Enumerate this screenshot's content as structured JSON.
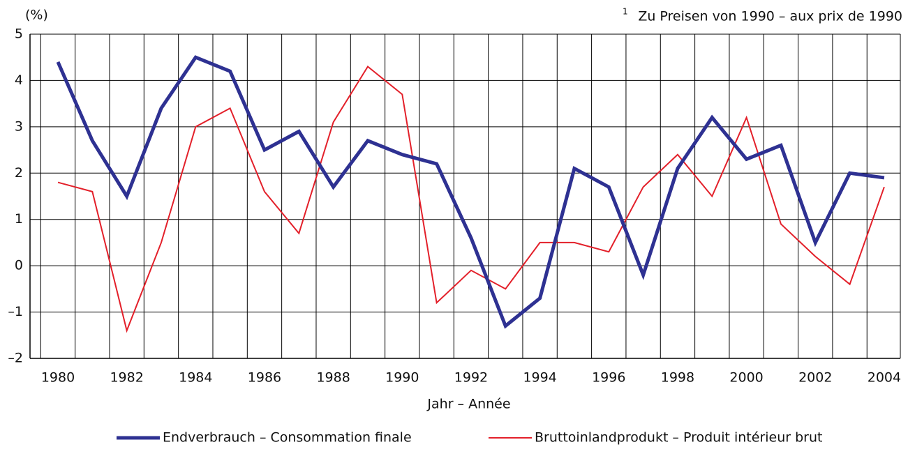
{
  "chart_data": {
    "type": "line",
    "y_unit": "(%)",
    "note_marker": "1",
    "note": "Zu Preisen von 1990 – aux prix de 1990",
    "x_label": "Jahr – Année",
    "categories": [
      "1980",
      null,
      "1982",
      null,
      "1984",
      null,
      "1986",
      null,
      "1988",
      null,
      "1990",
      null,
      "1992",
      null,
      "1994",
      null,
      "1996",
      null,
      "1998",
      null,
      "2000",
      null,
      "2002",
      null,
      "2004"
    ],
    "series": [
      {
        "name": "Endverbrauch – Consommation finale",
        "color": "#2e3192",
        "width": 5,
        "values": [
          4.4,
          2.7,
          1.5,
          3.4,
          4.5,
          4.2,
          2.5,
          2.9,
          1.7,
          2.7,
          2.4,
          2.2,
          0.6,
          -1.3,
          -0.7,
          2.1,
          1.7,
          -0.2,
          2.1,
          3.2,
          2.3,
          2.6,
          0.5,
          2.0,
          1.9
        ]
      },
      {
        "name": "Bruttoinlandprodukt – Produit intérieur brut",
        "color": "#e3202a",
        "width": 2,
        "values": [
          1.8,
          1.6,
          -1.4,
          0.5,
          3.0,
          3.4,
          1.6,
          0.7,
          3.1,
          4.3,
          3.7,
          -0.8,
          -0.1,
          -0.5,
          0.5,
          0.5,
          0.3,
          1.7,
          2.4,
          1.5,
          3.2,
          0.9,
          0.2,
          -0.4,
          1.7
        ]
      }
    ],
    "ylim": [
      -2,
      5
    ],
    "yticks": [
      {
        "value": -2,
        "label": "–2"
      },
      {
        "value": -1,
        "label": "–1"
      },
      0,
      1,
      2,
      3,
      4,
      5
    ],
    "grid": true
  }
}
